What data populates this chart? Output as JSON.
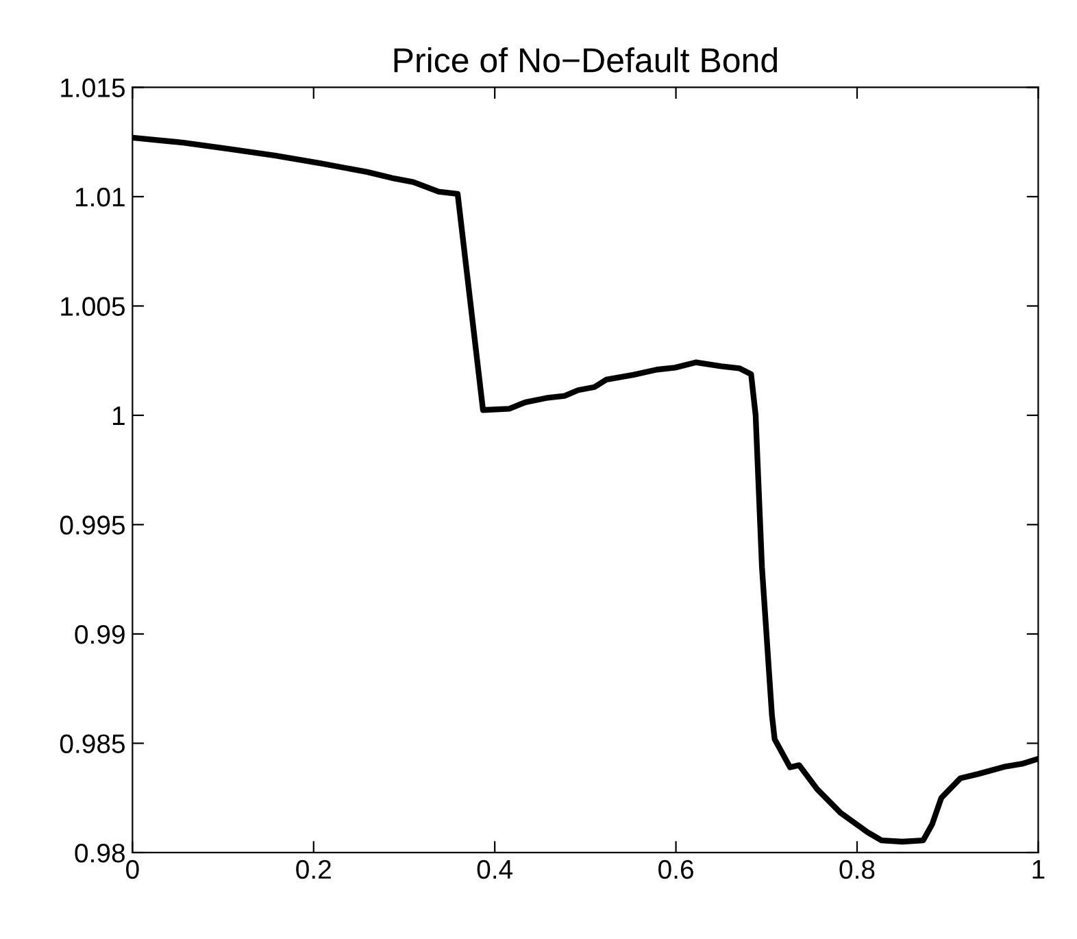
{
  "chart_data": {
    "type": "line",
    "title": "Price of No−Default Bond",
    "x": [
      0,
      0.056,
      0.107,
      0.157,
      0.208,
      0.259,
      0.289,
      0.31,
      0.338,
      0.359,
      0.387,
      0.416,
      0.434,
      0.4568,
      0.477,
      0.492,
      0.51,
      0.523,
      0.553,
      0.579,
      0.599,
      0.622,
      0.65,
      0.67,
      0.683,
      0.688,
      0.695,
      0.706,
      0.709,
      0.726,
      0.736,
      0.756,
      0.782,
      0.812,
      0.827,
      0.85,
      0.873,
      0.883,
      0.893,
      0.914,
      0.934,
      0.964,
      0.982,
      1.0
    ],
    "series": [
      {
        "color": "#000000",
        "values": [
          1.0127,
          1.01247,
          1.01218,
          1.01188,
          1.01152,
          1.01113,
          1.01083,
          1.01067,
          1.01023,
          1.01013,
          1.00024,
          1.0003,
          1.0006,
          1.00079,
          1.00089,
          1.00115,
          1.00129,
          1.00163,
          1.00185,
          1.00209,
          1.00218,
          1.00242,
          1.00224,
          1.00215,
          1.00188,
          1.0,
          0.99304,
          0.98629,
          0.98519,
          0.9839,
          0.984,
          0.9829,
          0.98181,
          0.98092,
          0.98056,
          0.9805,
          0.98056,
          0.98131,
          0.9825,
          0.9834,
          0.9836,
          0.98394,
          0.98406,
          0.98429
        ]
      }
    ],
    "xlim": [
      0,
      1
    ],
    "ylim": [
      0.98,
      1.015
    ],
    "xticks": [
      0,
      0.2,
      0.4,
      0.6,
      0.8,
      1
    ],
    "yticks": [
      0.98,
      0.985,
      0.99,
      0.995,
      1,
      1.005,
      1.01,
      1.015
    ],
    "grid": false,
    "legend": false,
    "marker": "none",
    "line_style": "solid"
  }
}
